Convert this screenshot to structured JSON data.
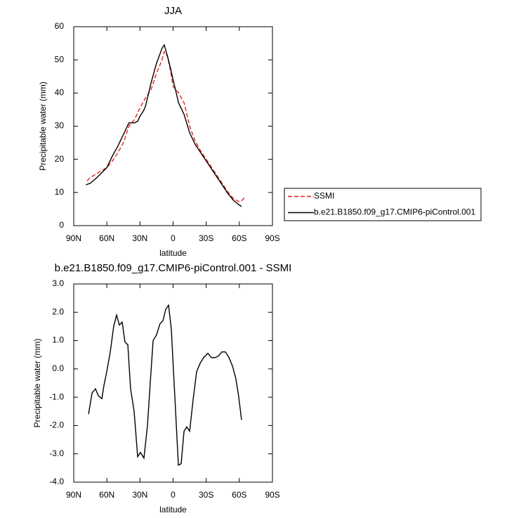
{
  "chart_data": [
    {
      "type": "line",
      "title": "JJA",
      "x_label": "latitude",
      "y_label": "Precipitable water (mm)",
      "xlim": [
        90,
        -90
      ],
      "ylim": [
        0,
        60
      ],
      "xticks": [
        {
          "value": 90,
          "label": "90N"
        },
        {
          "value": 60,
          "label": "60N"
        },
        {
          "value": 30,
          "label": "30N"
        },
        0,
        {
          "value": -30,
          "label": "30S"
        },
        {
          "value": -60,
          "label": "60S"
        },
        {
          "value": -90,
          "label": "90S"
        }
      ],
      "yticks": [
        0,
        10,
        20,
        30,
        40,
        50,
        60
      ],
      "legend": "right",
      "series": [
        {
          "name": "SSMI",
          "color": "#e8211d",
          "style": "dashed",
          "x": [
            78,
            75,
            70,
            65,
            60,
            55,
            50,
            45,
            40,
            35,
            30,
            25,
            20,
            15,
            10,
            8,
            5,
            2,
            0,
            -5,
            -10,
            -15,
            -20,
            -25,
            -30,
            -35,
            -40,
            -45,
            -50,
            -55,
            -60,
            -62,
            -65
          ],
          "values": [
            13.5,
            14.5,
            15.5,
            16.5,
            17.5,
            19.5,
            22,
            25,
            30,
            32,
            35.5,
            38.5,
            41,
            46,
            50,
            52.5,
            51,
            46,
            42,
            40,
            37,
            30,
            25.5,
            22.5,
            20,
            17.5,
            15,
            12.5,
            10,
            8,
            7.2,
            7.5,
            8.5
          ]
        },
        {
          "name": "b.e21.B1850.f09_g17.CMIP6-piControl.001",
          "color": "#000000",
          "style": "solid",
          "x": [
            79,
            75,
            70,
            65,
            60,
            55,
            50,
            45,
            40,
            35,
            32,
            30,
            27,
            25,
            20,
            15,
            10,
            8,
            5,
            2,
            0,
            -5,
            -10,
            -15,
            -20,
            -25,
            -30,
            -35,
            -40,
            -45,
            -50,
            -55,
            -60,
            -62
          ],
          "values": [
            12.3,
            12.8,
            14.2,
            15.8,
            17.5,
            21,
            24,
            27.5,
            31,
            31,
            31.5,
            33,
            34.5,
            36,
            43,
            49,
            53.5,
            54.5,
            51,
            47,
            44,
            37,
            33.5,
            28,
            24.5,
            22,
            19.5,
            17,
            14.5,
            12,
            9.5,
            7.5,
            6.2,
            5.8
          ]
        }
      ]
    },
    {
      "type": "line",
      "title": "b.e21.B1850.f09_g17.CMIP6-piControl.001 - SSMI",
      "x_label": "latitude",
      "y_label": "Precipitable water (mm)",
      "xlim": [
        90,
        -90
      ],
      "ylim": [
        -4,
        3
      ],
      "xticks": [
        {
          "value": 90,
          "label": "90N"
        },
        {
          "value": 60,
          "label": "60N"
        },
        {
          "value": 30,
          "label": "30N"
        },
        0,
        {
          "value": -30,
          "label": "30S"
        },
        {
          "value": -60,
          "label": "60S"
        },
        {
          "value": -90,
          "label": "90S"
        }
      ],
      "yticks": [
        {
          "value": -4,
          "label": "-4.0"
        },
        {
          "value": -3,
          "label": "-3.0"
        },
        {
          "value": -2,
          "label": "-2.0"
        },
        {
          "value": -1,
          "label": "-1.0"
        },
        {
          "value": 0,
          "label": "0.0"
        },
        {
          "value": 1,
          "label": "1.0"
        },
        {
          "value": 2,
          "label": "2.0"
        },
        {
          "value": 3,
          "label": "3.0"
        }
      ],
      "color": "#000000",
      "x": [
        76.6,
        73.4,
        70.3,
        67.7,
        64.5,
        62.7,
        60.1,
        56.9,
        53.8,
        51.2,
        48.7,
        46.1,
        43.6,
        41.0,
        38.5,
        35.3,
        32.1,
        29.6,
        26.4,
        23.2,
        20.7,
        18.1,
        15.0,
        11.8,
        9.2,
        6.7,
        4.1,
        1.6,
        -1.6,
        -4.8,
        -7.3,
        -9.9,
        -12.4,
        -15.0,
        -18.1,
        -21.3,
        -24.5,
        -27.7,
        -31.5,
        -34.7,
        -37.9,
        -41.0,
        -44.2,
        -47.4,
        -50.6,
        -53.8,
        -56.9,
        -59.5,
        -62.0
      ],
      "values": [
        -1.6,
        -0.85,
        -0.7,
        -0.95,
        -1.05,
        -0.6,
        -0.1,
        0.6,
        1.5,
        1.9,
        1.55,
        1.65,
        0.95,
        0.85,
        -0.7,
        -1.5,
        -3.1,
        -2.95,
        -3.15,
        -2.0,
        -0.5,
        1.0,
        1.2,
        1.6,
        1.7,
        2.1,
        2.25,
        1.4,
        -1.0,
        -3.4,
        -3.35,
        -2.2,
        -2.05,
        -2.2,
        -1.1,
        -0.1,
        0.2,
        0.4,
        0.55,
        0.4,
        0.4,
        0.45,
        0.6,
        0.6,
        0.4,
        0.1,
        -0.35,
        -1.0,
        -1.8
      ]
    }
  ]
}
